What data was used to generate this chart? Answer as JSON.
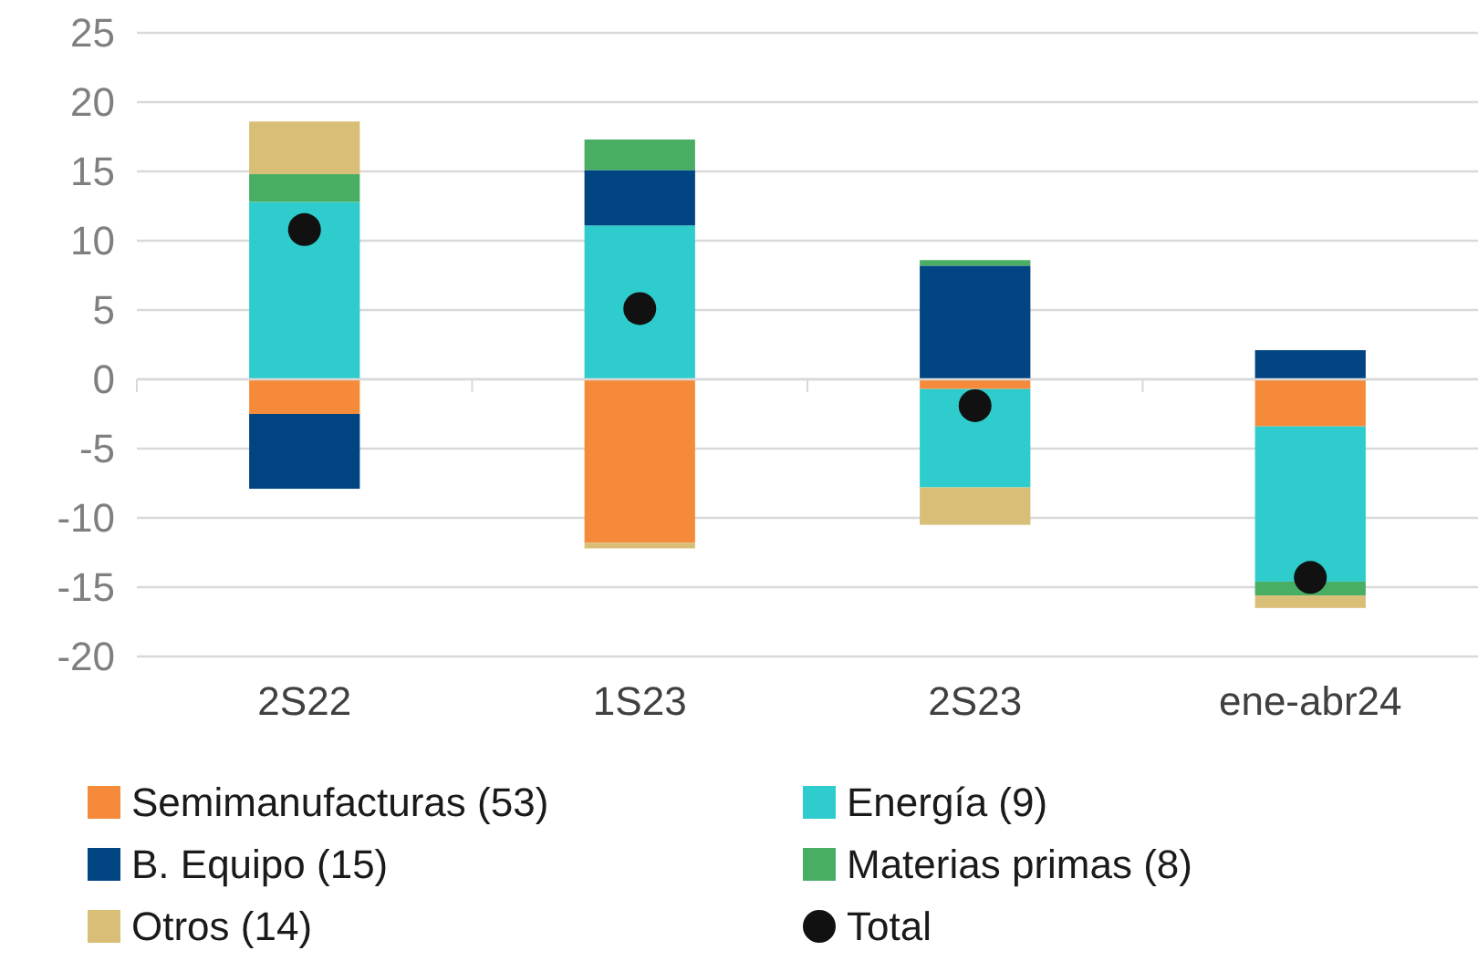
{
  "chart_data": {
    "type": "bar",
    "stacked": true,
    "categories": [
      "2S22",
      "1S23",
      "2S23",
      "ene-abr24"
    ],
    "series": [
      {
        "name": "Semimanufacturas (53)",
        "color": "#f58b3a",
        "values": [
          -2.5,
          -11.8,
          -0.7,
          -3.4
        ]
      },
      {
        "name": "Energía (9)",
        "color": "#2ecccc",
        "values": [
          12.8,
          11.1,
          -7.1,
          -11.2
        ]
      },
      {
        "name": "B. Equipo (15)",
        "color": "#004481",
        "values": [
          -5.4,
          4.0,
          8.2,
          2.1
        ]
      },
      {
        "name": "Materias primas (8)",
        "color": "#48ae64",
        "values": [
          2.0,
          2.2,
          0.4,
          -1.0
        ]
      },
      {
        "name": "Otros (14)",
        "color": "#d8be76",
        "values": [
          3.8,
          -0.4,
          -2.7,
          -0.9
        ]
      },
      {
        "name": "Total",
        "type": "scatter",
        "color": "#111111",
        "marker": "circle",
        "x": [
          "2S22",
          "1S23",
          "2S23",
          "ene-abr24"
        ],
        "values": [
          10.8,
          5.1,
          -1.9,
          -14.3
        ]
      }
    ],
    "ylim": [
      -20,
      25
    ],
    "yticks": [
      -20,
      -15,
      -10,
      -5,
      0,
      5,
      10,
      15,
      20,
      25
    ],
    "grid": "y",
    "legend": "bottom"
  }
}
